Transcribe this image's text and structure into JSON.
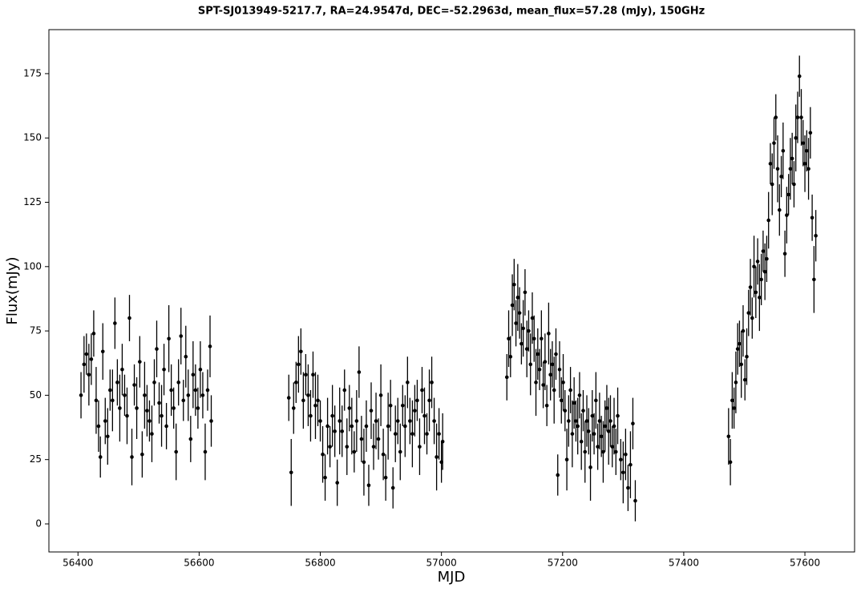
{
  "chart_data": {
    "type": "scatter",
    "title": "SPT-SJ013949-5217.7, RA=24.9547d, DEC=-52.2963d, mean_flux=57.28 (mJy), 150GHz",
    "x_label": "MJD",
    "y_label": "Flux(mJy)",
    "xlim": [
      56352,
      57682
    ],
    "ylim": [
      -10.9,
      192.1
    ],
    "xticks": [
      56400,
      56600,
      56800,
      57000,
      57200,
      57400,
      57600
    ],
    "yticks": [
      0,
      25,
      50,
      75,
      100,
      125,
      150,
      175
    ],
    "color": "#000000",
    "x": [
      56405,
      56410,
      56414,
      56418,
      56422,
      56426,
      56430,
      56434,
      56437,
      56441,
      56445,
      56449,
      56453,
      56457,
      56461,
      56465,
      56469,
      56473,
      56477,
      56481,
      56485,
      56489,
      56493,
      56497,
      56502,
      56506,
      56510,
      56514,
      56518,
      56522,
      56526,
      56530,
      56534,
      56538,
      56542,
      56546,
      56550,
      56554,
      56558,
      56562,
      56566,
      56570,
      56574,
      56578,
      56582,
      56586,
      56590,
      56594,
      56598,
      56602,
      56606,
      56610,
      56614,
      56618,
      56620,
      56748,
      56752,
      56756,
      56760,
      56764,
      56768,
      56772,
      56776,
      56780,
      56784,
      56788,
      56792,
      56796,
      56800,
      56804,
      56808,
      56812,
      56816,
      56820,
      56824,
      56828,
      56832,
      56836,
      56840,
      56844,
      56848,
      56852,
      56856,
      56860,
      56864,
      56868,
      56872,
      56876,
      56880,
      56884,
      56888,
      56892,
      56896,
      56900,
      56904,
      56908,
      56912,
      56916,
      56920,
      56924,
      56928,
      56932,
      56936,
      56940,
      56944,
      56948,
      56952,
      56956,
      56960,
      56964,
      56968,
      56972,
      56976,
      56980,
      56984,
      56988,
      56992,
      56996,
      57000,
      57002,
      57108,
      57111,
      57114,
      57117,
      57120,
      57123,
      57126,
      57129,
      57132,
      57135,
      57138,
      57141,
      57144,
      57147,
      57150,
      57153,
      57156,
      57159,
      57162,
      57165,
      57168,
      57171,
      57174,
      57177,
      57180,
      57183,
      57186,
      57189,
      57192,
      57195,
      57198,
      57201,
      57204,
      57207,
      57210,
      57213,
      57216,
      57219,
      57222,
      57225,
      57228,
      57231,
      57234,
      57237,
      57240,
      57243,
      57246,
      57249,
      57252,
      57255,
      57258,
      57261,
      57264,
      57267,
      57270,
      57273,
      57276,
      57279,
      57282,
      57285,
      57288,
      57291,
      57296,
      57300,
      57304,
      57308,
      57312,
      57316,
      57320,
      57474,
      57477,
      57480,
      57483,
      57486,
      57489,
      57492,
      57495,
      57498,
      57501,
      57504,
      57507,
      57510,
      57513,
      57516,
      57519,
      57522,
      57525,
      57528,
      57531,
      57534,
      57537,
      57540,
      57543,
      57546,
      57549,
      57552,
      57555,
      57558,
      57561,
      57564,
      57567,
      57570,
      57573,
      57576,
      57579,
      57582,
      57585,
      57588,
      57591,
      57594,
      57597,
      57600,
      57603,
      57606,
      57609,
      57612,
      57615,
      57618
    ],
    "values": [
      50,
      62,
      66,
      58,
      64,
      74,
      48,
      38,
      26,
      67,
      40,
      34,
      52,
      48,
      78,
      55,
      45,
      60,
      50,
      42,
      80,
      26,
      54,
      45,
      63,
      27,
      50,
      44,
      40,
      35,
      55,
      68,
      47,
      42,
      60,
      38,
      72,
      52,
      45,
      28,
      55,
      73,
      48,
      65,
      50,
      33,
      58,
      52,
      45,
      60,
      50,
      28,
      52,
      69,
      40,
      49,
      20,
      45,
      55,
      62,
      67,
      48,
      58,
      50,
      42,
      58,
      46,
      48,
      40,
      27,
      18,
      38,
      30,
      42,
      36,
      16,
      40,
      36,
      52,
      30,
      45,
      38,
      28,
      40,
      59,
      33,
      24,
      38,
      15,
      44,
      30,
      40,
      33,
      50,
      27,
      18,
      38,
      46,
      14,
      35,
      40,
      28,
      46,
      38,
      55,
      40,
      35,
      44,
      48,
      30,
      52,
      42,
      35,
      48,
      55,
      40,
      26,
      35,
      24,
      32,
      57,
      72,
      65,
      85,
      93,
      78,
      88,
      82,
      70,
      76,
      90,
      68,
      75,
      62,
      80,
      72,
      55,
      66,
      60,
      72,
      54,
      63,
      46,
      74,
      58,
      62,
      52,
      66,
      19,
      60,
      48,
      55,
      44,
      25,
      40,
      52,
      35,
      47,
      40,
      38,
      50,
      32,
      44,
      28,
      40,
      36,
      22,
      42,
      35,
      48,
      30,
      40,
      34,
      28,
      38,
      45,
      36,
      40,
      30,
      38,
      28,
      42,
      25,
      20,
      27,
      14,
      23,
      39,
      9,
      34,
      24,
      48,
      45,
      55,
      68,
      70,
      62,
      75,
      56,
      65,
      82,
      92,
      80,
      100,
      90,
      102,
      88,
      95,
      106,
      98,
      103,
      118,
      140,
      132,
      148,
      158,
      138,
      122,
      135,
      145,
      105,
      120,
      128,
      138,
      142,
      132,
      150,
      158,
      174,
      158,
      148,
      140,
      145,
      138,
      152,
      119,
      95,
      112
    ],
    "errors": [
      9,
      11,
      8,
      12,
      10,
      9,
      13,
      10,
      8,
      11,
      9,
      11,
      8,
      12,
      10,
      9,
      13,
      10,
      8,
      11,
      9,
      11,
      8,
      12,
      10,
      9,
      13,
      10,
      8,
      11,
      9,
      11,
      8,
      12,
      10,
      9,
      13,
      10,
      8,
      11,
      9,
      11,
      8,
      12,
      10,
      9,
      13,
      10,
      8,
      11,
      9,
      11,
      8,
      12,
      10,
      9,
      13,
      10,
      8,
      11,
      9,
      11,
      8,
      12,
      10,
      9,
      13,
      10,
      8,
      11,
      9,
      11,
      8,
      12,
      10,
      9,
      13,
      10,
      8,
      11,
      9,
      11,
      8,
      12,
      10,
      9,
      13,
      10,
      8,
      11,
      9,
      11,
      8,
      12,
      10,
      9,
      13,
      10,
      8,
      11,
      9,
      11,
      8,
      12,
      10,
      9,
      13,
      10,
      8,
      11,
      9,
      11,
      8,
      12,
      10,
      9,
      13,
      10,
      8,
      11,
      9,
      11,
      8,
      12,
      10,
      9,
      13,
      10,
      8,
      11,
      9,
      11,
      8,
      12,
      10,
      9,
      13,
      10,
      8,
      11,
      9,
      11,
      8,
      12,
      10,
      9,
      13,
      10,
      8,
      11,
      9,
      11,
      8,
      12,
      10,
      9,
      13,
      10,
      8,
      11,
      9,
      11,
      8,
      12,
      10,
      9,
      13,
      10,
      8,
      11,
      9,
      11,
      8,
      12,
      10,
      9,
      13,
      10,
      8,
      11,
      9,
      11,
      8,
      12,
      10,
      9,
      13,
      10,
      8,
      11,
      9,
      11,
      8,
      12,
      10,
      9,
      13,
      10,
      8,
      11,
      9,
      11,
      8,
      12,
      10,
      9,
      13,
      10,
      8,
      11,
      9,
      11,
      8,
      12,
      10,
      9,
      13,
      10,
      8,
      11,
      9,
      11,
      8,
      12,
      10,
      9,
      13,
      10,
      8,
      11,
      9,
      11,
      8,
      12,
      10,
      9,
      13,
      10
    ]
  }
}
